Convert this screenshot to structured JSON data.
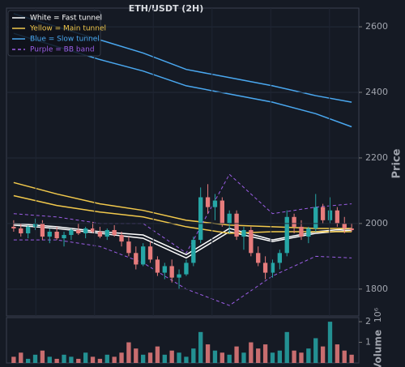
{
  "chart_data": {
    "type": "candlestick",
    "title": "ETH/USDT (2H)",
    "ylabel": "Price",
    "xlim": [
      -1,
      48
    ],
    "ylim": [
      1718,
      2657
    ],
    "yticks": [
      1800,
      2000,
      2200,
      2400,
      2600
    ],
    "grid": true,
    "legend": "upper left",
    "up_color": "#26a6a6",
    "down_color": "#e77c7c",
    "candles": [
      [
        1990,
        2010,
        1975,
        1985
      ],
      [
        1985,
        2000,
        1960,
        1970
      ],
      [
        1970,
        1995,
        1955,
        1990
      ],
      [
        1990,
        2015,
        1980,
        2000
      ],
      [
        2000,
        2010,
        1950,
        1960
      ],
      [
        1960,
        1985,
        1940,
        1975
      ],
      [
        1975,
        1990,
        1950,
        1955
      ],
      [
        1955,
        1975,
        1930,
        1965
      ],
      [
        1965,
        1985,
        1950,
        1980
      ],
      [
        1980,
        2000,
        1965,
        1970
      ],
      [
        1970,
        1990,
        1955,
        1985
      ],
      [
        1985,
        2005,
        1970,
        1975
      ],
      [
        1975,
        1990,
        1955,
        1960
      ],
      [
        1960,
        1985,
        1950,
        1980
      ],
      [
        1980,
        1995,
        1960,
        1965
      ],
      [
        1965,
        1975,
        1930,
        1945
      ],
      [
        1945,
        1960,
        1900,
        1910
      ],
      [
        1910,
        1930,
        1860,
        1875
      ],
      [
        1875,
        1940,
        1870,
        1930
      ],
      [
        1930,
        1945,
        1880,
        1890
      ],
      [
        1890,
        1900,
        1840,
        1850
      ],
      [
        1850,
        1880,
        1830,
        1870
      ],
      [
        1870,
        1890,
        1820,
        1835
      ],
      [
        1835,
        1860,
        1800,
        1845
      ],
      [
        1845,
        1890,
        1840,
        1880
      ],
      [
        1880,
        1960,
        1870,
        1950
      ],
      [
        1950,
        2110,
        1940,
        2080
      ],
      [
        2080,
        2120,
        2030,
        2050
      ],
      [
        2050,
        2090,
        2010,
        2070
      ],
      [
        2070,
        2080,
        1990,
        2000
      ],
      [
        2000,
        2040,
        1970,
        2030
      ],
      [
        2030,
        2040,
        1950,
        1960
      ],
      [
        1960,
        1990,
        1920,
        1980
      ],
      [
        1980,
        1990,
        1900,
        1910
      ],
      [
        1910,
        1930,
        1870,
        1880
      ],
      [
        1880,
        1900,
        1830,
        1850
      ],
      [
        1850,
        1890,
        1835,
        1880
      ],
      [
        1880,
        1920,
        1860,
        1910
      ],
      [
        1910,
        2040,
        1900,
        2020
      ],
      [
        2020,
        2030,
        1970,
        1990
      ],
      [
        1990,
        2010,
        1950,
        1960
      ],
      [
        1960,
        1990,
        1940,
        1985
      ],
      [
        1985,
        2090,
        1975,
        2050
      ],
      [
        2050,
        2060,
        2000,
        2010
      ],
      [
        2010,
        2080,
        2000,
        2040
      ],
      [
        2040,
        2050,
        1990,
        2000
      ],
      [
        2000,
        2020,
        1970,
        1985
      ],
      [
        1985,
        2000,
        1975,
        1980
      ]
    ],
    "bands": [
      {
        "name": "White = Fast tunnel",
        "color": "#ffffff",
        "dashed": false,
        "x": [
          0,
          6,
          12,
          18,
          24,
          30,
          36,
          42,
          47
        ],
        "upper": [
          2000,
          1990,
          1975,
          1965,
          1905,
          1985,
          1950,
          1975,
          1985
        ],
        "lower": [
          1995,
          1985,
          1970,
          1955,
          1895,
          1975,
          1945,
          1970,
          1980
        ]
      },
      {
        "name": "Yellow = Main tunnel",
        "color": "#f2c94c",
        "dashed": false,
        "x": [
          0,
          6,
          12,
          18,
          24,
          30,
          36,
          42,
          47
        ],
        "upper": [
          2125,
          2090,
          2060,
          2040,
          2010,
          1995,
          1990,
          1985,
          1985
        ],
        "lower": [
          2085,
          2055,
          2035,
          2020,
          1990,
          1970,
          1975,
          1975,
          1975
        ]
      },
      {
        "name": "Blue = Slow tunnel",
        "color": "#4aa8f0",
        "dashed": false,
        "x": [
          0,
          6,
          12,
          18,
          24,
          30,
          36,
          42,
          47
        ],
        "upper": [
          2640,
          2600,
          2560,
          2520,
          2470,
          2445,
          2420,
          2390,
          2370
        ],
        "lower": [
          2580,
          2540,
          2500,
          2465,
          2420,
          2395,
          2370,
          2335,
          2295
        ]
      },
      {
        "name": "Purple = BB band",
        "color": "#9b5de5",
        "dashed": true,
        "x": [
          0,
          6,
          12,
          18,
          24,
          30,
          36,
          42,
          47
        ],
        "upper": [
          2030,
          2020,
          2000,
          2000,
          1910,
          2150,
          2030,
          2050,
          2060
        ],
        "lower": [
          1950,
          1950,
          1930,
          1880,
          1800,
          1750,
          1840,
          1900,
          1895
        ]
      }
    ],
    "volume": {
      "ylabel": "Volume",
      "offset_label": "10⁶",
      "ylim": [
        0,
        2.2
      ],
      "yticks": [
        1,
        2
      ],
      "values": [
        0.3,
        0.5,
        0.2,
        0.4,
        0.6,
        0.3,
        0.2,
        0.4,
        0.3,
        0.2,
        0.5,
        0.3,
        0.2,
        0.4,
        0.3,
        0.5,
        1.0,
        0.7,
        0.4,
        0.5,
        0.8,
        0.4,
        0.6,
        0.5,
        0.3,
        0.7,
        1.5,
        0.9,
        0.6,
        0.5,
        0.4,
        0.8,
        0.5,
        1.0,
        0.7,
        0.9,
        0.5,
        0.6,
        1.5,
        0.6,
        0.5,
        0.7,
        1.2,
        0.8,
        2.0,
        0.9,
        0.6,
        0.4
      ]
    }
  }
}
